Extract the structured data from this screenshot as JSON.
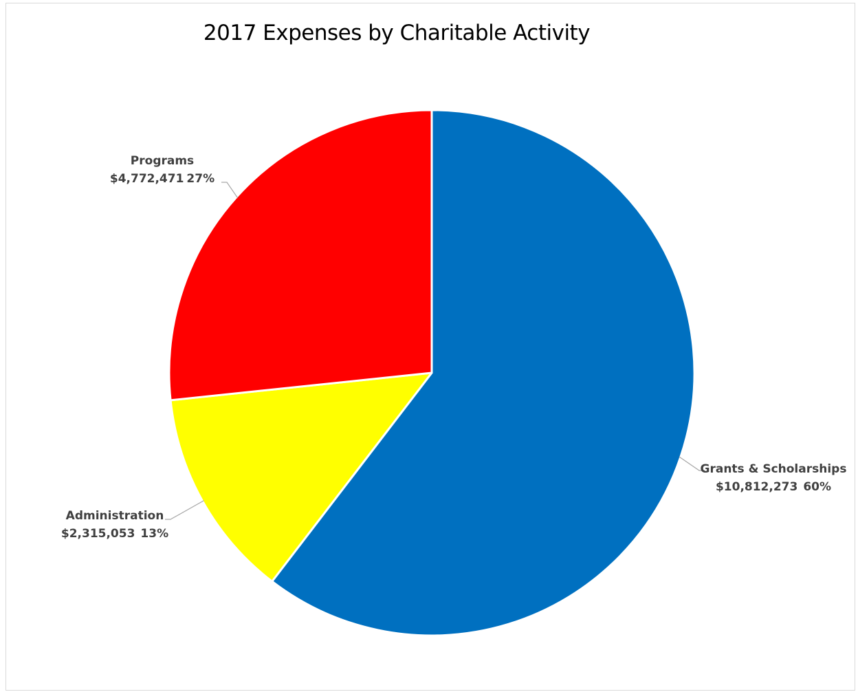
{
  "chart_data": {
    "type": "pie",
    "title": "2017 Expenses by Charitable Activity",
    "slices": [
      {
        "name": "Grants & Scholarships",
        "value": 10812273,
        "value_label": "$10,812,273",
        "percent": 60,
        "percent_label": "60%",
        "color": "#0070C0"
      },
      {
        "name": "Administration",
        "value": 2315053,
        "value_label": "$2,315,053",
        "percent": 13,
        "percent_label": "13%",
        "color": "#FFFF00"
      },
      {
        "name": "Programs",
        "value": 4772471,
        "value_label": "$4,772,471",
        "percent": 27,
        "percent_label": "27%",
        "color": "#FF0000"
      }
    ],
    "start": "12 o'clock",
    "direction": "clockwise",
    "legend": "none",
    "data_labels": "outside with leader lines"
  }
}
